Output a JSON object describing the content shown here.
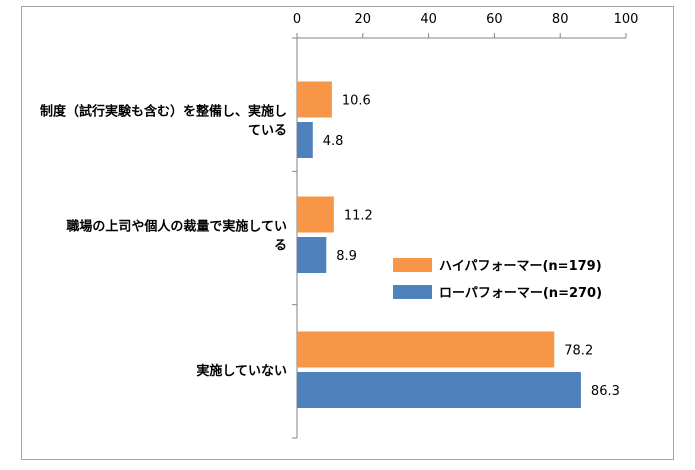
{
  "chart_data": {
    "type": "bar",
    "orientation": "horizontal",
    "categories": [
      [
        "制度（試行実験も含む）を整備し、実施し",
        "ている"
      ],
      [
        "職場の上司や個人の裁量で実施してい",
        "る"
      ],
      [
        "実施していない"
      ]
    ],
    "series": [
      {
        "name": "ハイパフォーマー(n=179)",
        "values": [
          10.6,
          11.2,
          78.2
        ],
        "color": "#F79646"
      },
      {
        "name": "ローパフォーマー(n=270)",
        "values": [
          4.8,
          8.9,
          86.3
        ],
        "color": "#4F81BD"
      }
    ],
    "xlim": [
      0,
      100
    ],
    "xticks": [
      0,
      20,
      40,
      60,
      80,
      100
    ],
    "xaxis_position": "top",
    "grid": false,
    "legend_position": "right-middle",
    "data_labels": true
  }
}
